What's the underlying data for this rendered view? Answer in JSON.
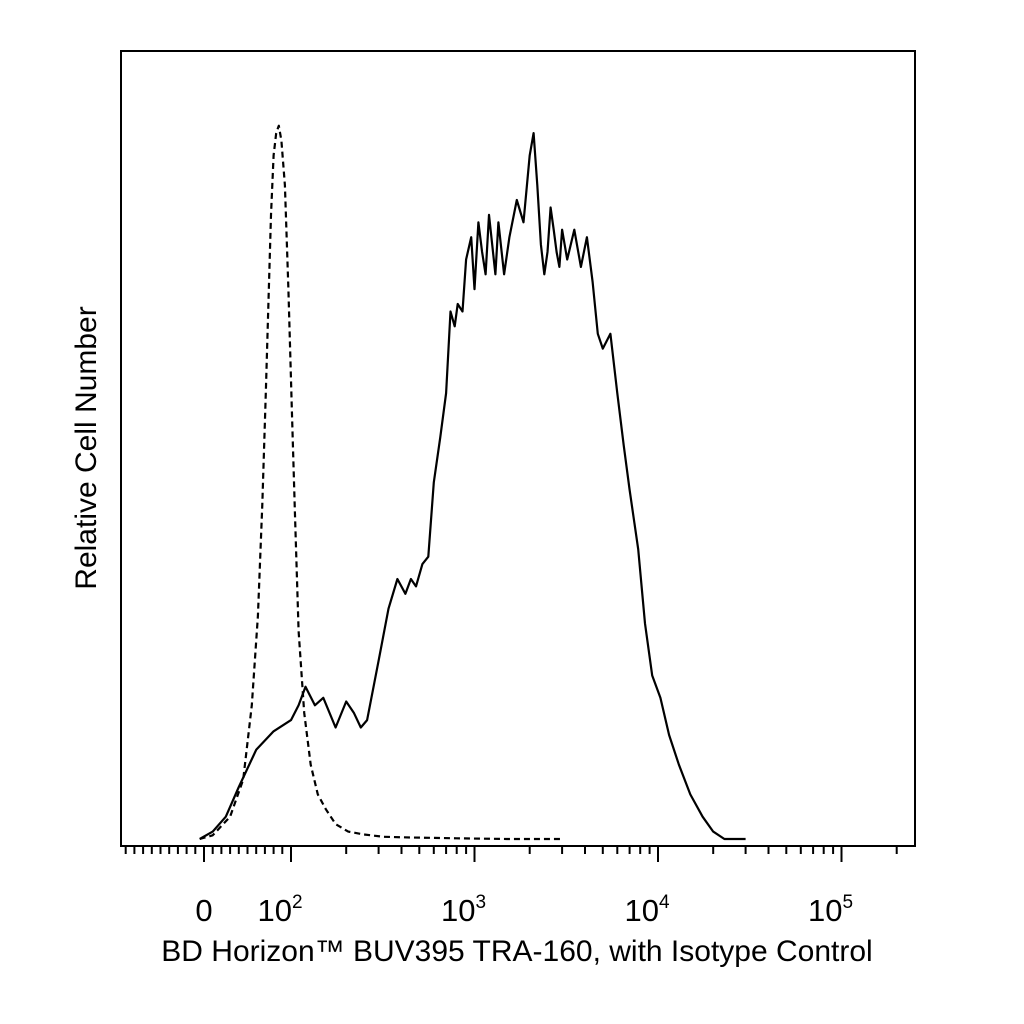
{
  "chart_data": {
    "type": "line",
    "title": "",
    "xlabel": "BD Horizon™ BUV395 TRA-160, with Isotype Control",
    "ylabel": "Relative Cell Number",
    "x_scale": "biexponential",
    "xlim": [
      -40,
      200000
    ],
    "ylim": [
      0,
      100
    ],
    "grid": false,
    "legend": "none",
    "x_ticks": [
      {
        "value": 0,
        "base": "0",
        "exp": ""
      },
      {
        "value": 100,
        "base": "10",
        "exp": "2"
      },
      {
        "value": 1000,
        "base": "10",
        "exp": "3"
      },
      {
        "value": 10000,
        "base": "10",
        "exp": "4"
      },
      {
        "value": 100000,
        "base": "10",
        "exp": "5"
      }
    ],
    "series": [
      {
        "line_style": "dashed",
        "color": "#000000",
        "points": [
          [
            -5,
            0
          ],
          [
            10,
            0.5
          ],
          [
            30,
            3
          ],
          [
            45,
            8
          ],
          [
            55,
            18
          ],
          [
            62,
            30
          ],
          [
            67,
            45
          ],
          [
            71,
            60
          ],
          [
            74,
            72
          ],
          [
            77,
            84
          ],
          [
            80,
            92
          ],
          [
            83,
            95
          ],
          [
            86,
            96
          ],
          [
            89,
            94
          ],
          [
            93,
            88
          ],
          [
            97,
            74
          ],
          [
            101,
            58
          ],
          [
            105,
            44
          ],
          [
            110,
            28
          ],
          [
            118,
            17
          ],
          [
            128,
            10
          ],
          [
            140,
            6
          ],
          [
            155,
            4
          ],
          [
            175,
            2
          ],
          [
            205,
            1
          ],
          [
            250,
            0.6
          ],
          [
            320,
            0.3
          ],
          [
            450,
            0.2
          ],
          [
            800,
            0.1
          ],
          [
            1500,
            0
          ],
          [
            3000,
            0
          ]
        ]
      },
      {
        "line_style": "solid",
        "color": "#000000",
        "points": [
          [
            -5,
            0
          ],
          [
            10,
            1
          ],
          [
            25,
            3
          ],
          [
            40,
            7
          ],
          [
            60,
            12
          ],
          [
            80,
            14.5
          ],
          [
            100,
            16
          ],
          [
            110,
            18
          ],
          [
            120,
            20.5
          ],
          [
            135,
            18
          ],
          [
            150,
            19
          ],
          [
            175,
            15
          ],
          [
            200,
            18.5
          ],
          [
            220,
            17
          ],
          [
            240,
            15
          ],
          [
            260,
            16
          ],
          [
            300,
            24
          ],
          [
            340,
            31
          ],
          [
            380,
            35
          ],
          [
            420,
            33
          ],
          [
            450,
            35
          ],
          [
            480,
            34
          ],
          [
            520,
            37
          ],
          [
            560,
            38
          ],
          [
            600,
            48
          ],
          [
            650,
            54
          ],
          [
            700,
            60
          ],
          [
            740,
            71
          ],
          [
            780,
            69
          ],
          [
            810,
            72
          ],
          [
            860,
            71
          ],
          [
            900,
            78
          ],
          [
            960,
            81
          ],
          [
            1000,
            74
          ],
          [
            1050,
            83
          ],
          [
            1100,
            79
          ],
          [
            1150,
            76
          ],
          [
            1200,
            84
          ],
          [
            1300,
            76
          ],
          [
            1350,
            83
          ],
          [
            1450,
            76
          ],
          [
            1550,
            81
          ],
          [
            1700,
            86
          ],
          [
            1850,
            83
          ],
          [
            2000,
            92
          ],
          [
            2100,
            95
          ],
          [
            2200,
            88
          ],
          [
            2300,
            80
          ],
          [
            2400,
            76
          ],
          [
            2500,
            79
          ],
          [
            2600,
            85
          ],
          [
            2700,
            82
          ],
          [
            2800,
            79
          ],
          [
            2900,
            77
          ],
          [
            3000,
            82
          ],
          [
            3200,
            78
          ],
          [
            3500,
            82
          ],
          [
            3800,
            77
          ],
          [
            4100,
            81
          ],
          [
            4400,
            75
          ],
          [
            4700,
            68
          ],
          [
            5000,
            66
          ],
          [
            5500,
            68
          ],
          [
            6000,
            60
          ],
          [
            6500,
            53
          ],
          [
            7000,
            47
          ],
          [
            7800,
            39
          ],
          [
            8500,
            29
          ],
          [
            9300,
            22
          ],
          [
            10300,
            19
          ],
          [
            11500,
            14
          ],
          [
            13000,
            10
          ],
          [
            15000,
            6
          ],
          [
            17500,
            3
          ],
          [
            20000,
            1
          ],
          [
            23000,
            0
          ],
          [
            30000,
            0
          ]
        ]
      }
    ]
  }
}
